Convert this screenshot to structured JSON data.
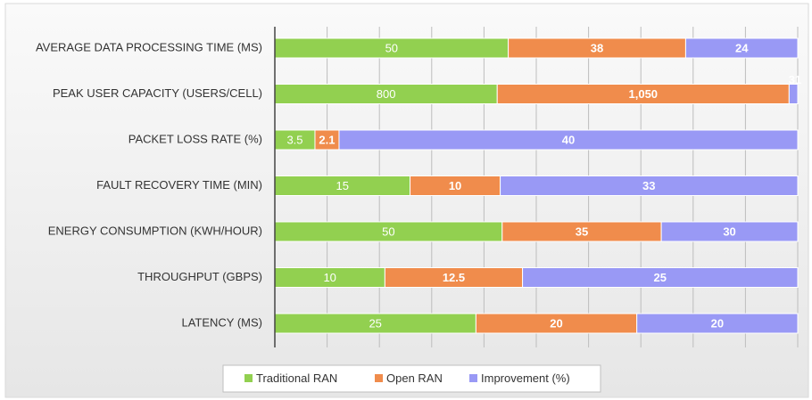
{
  "chart_data": {
    "type": "bar",
    "orientation": "horizontal",
    "stacking": "percent",
    "categories": [
      "AVERAGE DATA PROCESSING TIME (MS)",
      "PEAK USER CAPACITY (USERS/CELL)",
      "PACKET LOSS RATE (%)",
      "FAULT RECOVERY TIME (MIN)",
      "ENERGY CONSUMPTION (KWH/HOUR)",
      "THROUGHPUT (GBPS)",
      "LATENCY (MS)"
    ],
    "series": [
      {
        "name": "Traditional RAN",
        "color": "#92d050",
        "values": [
          50,
          800,
          3.5,
          15,
          50,
          10,
          25
        ]
      },
      {
        "name": "Open RAN",
        "color": "#f08c4c",
        "values": [
          38,
          1050,
          2.1,
          10,
          35,
          12.5,
          20
        ],
        "value_labels": [
          "38",
          "1,050",
          "2.1",
          "10",
          "35",
          "12.5",
          "20"
        ]
      },
      {
        "name": "Improvement (%)",
        "color": "#9999f5",
        "values": [
          24,
          31,
          40,
          33,
          30,
          25,
          20
        ]
      }
    ],
    "xlim": [
      0,
      100
    ],
    "xticks": [
      0,
      10,
      20,
      30,
      40,
      50,
      60,
      70,
      80,
      90,
      100
    ],
    "grid": true,
    "legend": "bottom"
  }
}
